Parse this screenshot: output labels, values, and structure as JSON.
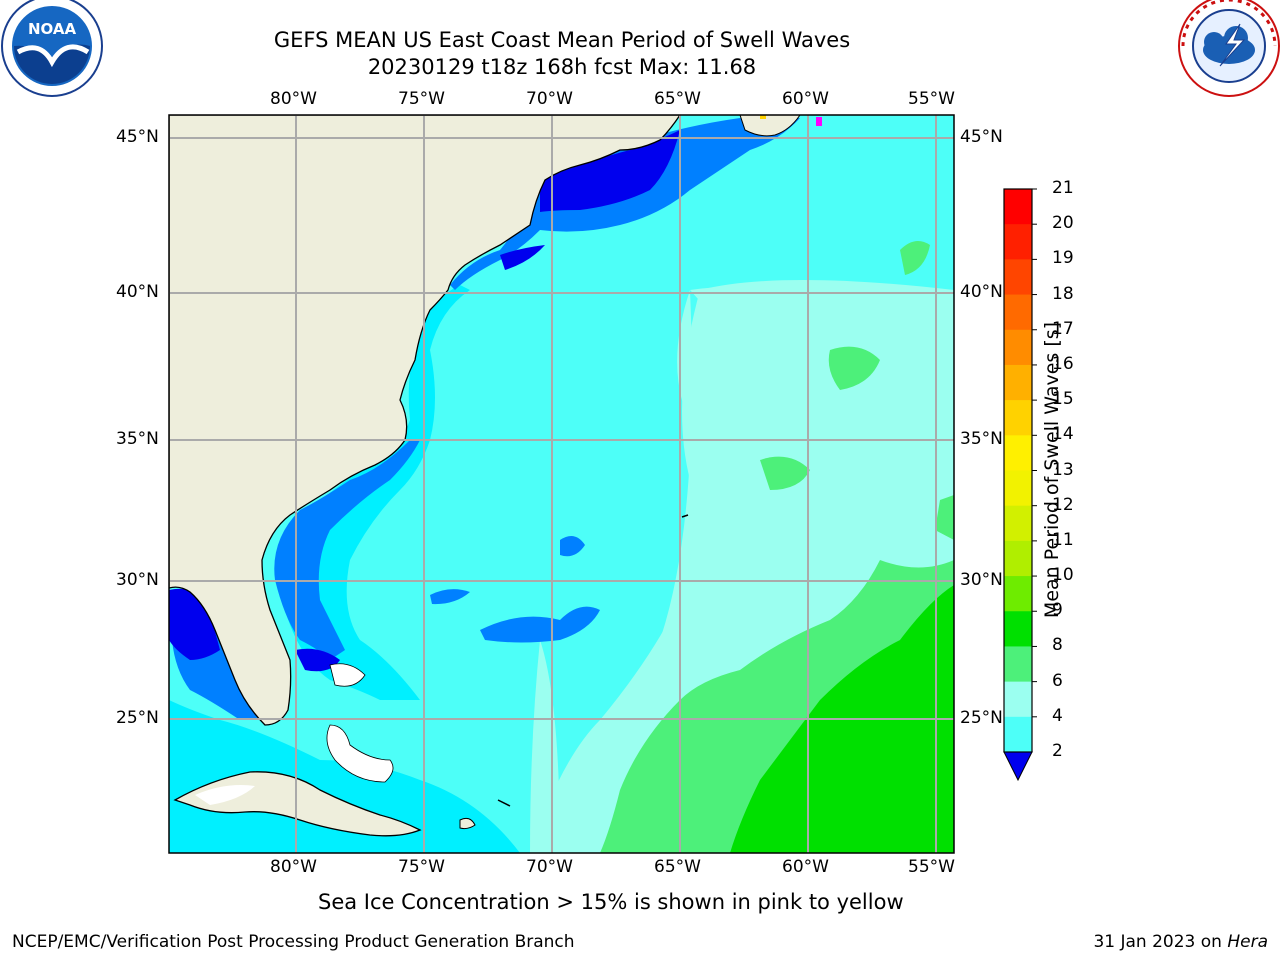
{
  "header": {
    "title_line1": "GEFS MEAN US East Coast Mean Period of Swell Waves",
    "title_line2": "20230129 t18z 168h fcst   Max: 11.68"
  },
  "logos": {
    "left": "NOAA",
    "left_ring_text": "NATIONAL OCEANIC AND ATMOSPHERIC ADMINISTRATION · U.S. DEPARTMENT OF COMMERCE",
    "right_ring_text": "NATIONAL WEATHER SERVICE"
  },
  "map": {
    "lon_labels": [
      "80°W",
      "75°W",
      "70°W",
      "65°W",
      "60°W",
      "55°W"
    ],
    "lat_labels": [
      "45°N",
      "40°N",
      "35°N",
      "30°N",
      "25°N"
    ]
  },
  "colorbar": {
    "label": "Mean Period of Swell Waves [s]",
    "ticks": [
      "21",
      "20",
      "19",
      "18",
      "17",
      "16",
      "15",
      "14",
      "13",
      "12",
      "11",
      "10",
      "9",
      "8",
      "6",
      "4",
      "2"
    ],
    "colors": [
      "#ff0000",
      "#ff2000",
      "#ff4500",
      "#ff6a00",
      "#ff8c00",
      "#ffb000",
      "#ffd200",
      "#fff000",
      "#f2f200",
      "#d2f000",
      "#b0ee00",
      "#6eec00",
      "#00e000",
      "#4df07a",
      "#9bfff0",
      "#4dfff8",
      "#00f0ff",
      "#0080ff"
    ],
    "extend_color": "#0000ee"
  },
  "notes": {
    "ice": "Sea Ice Concentration > 15% is shown in pink to yellow"
  },
  "footer": {
    "left": "NCEP/EMC/Verification Post Processing Product Generation Branch",
    "right_date": "31 Jan 2023 on ",
    "right_host": "Hera"
  }
}
